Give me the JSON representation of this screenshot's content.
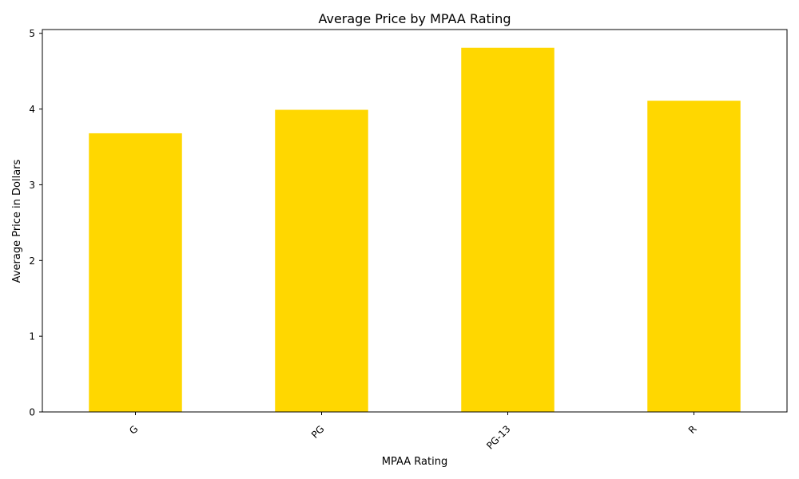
{
  "chart_data": {
    "type": "bar",
    "title": "Average Price by MPAA Rating",
    "xlabel": "MPAA Rating",
    "ylabel": "Average Price in Dollars",
    "categories": [
      "G",
      "PG",
      "PG-13",
      "R"
    ],
    "values": [
      3.68,
      3.99,
      4.81,
      4.11
    ],
    "ylim": [
      0,
      5.05
    ],
    "yticks": [
      0,
      1,
      2,
      3,
      4,
      5
    ],
    "bar_color": "#FFD700",
    "grid": false,
    "legend": "none",
    "xtick_rotation": 45
  }
}
